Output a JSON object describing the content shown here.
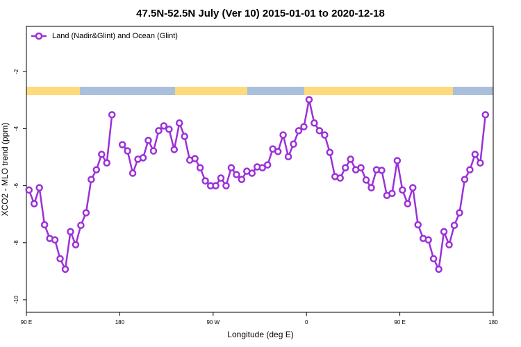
{
  "chart_data": {
    "type": "line",
    "title": "47.5N-52.5N July (Ver 10)   2015-01-01 to 2020-12-18",
    "x_label": "Longitude (deg E)",
    "y_label": "XCO2 - MLO trend (ppm)",
    "legend": "top-left",
    "xlim": [
      -270,
      180
    ],
    "ylim": [
      -10.44,
      -0.41
    ],
    "xticks": [
      {
        "value": -270,
        "label": "90 E"
      },
      {
        "value": -180,
        "label": "180"
      },
      {
        "value": -90,
        "label": "90 W"
      },
      0,
      {
        "value": 90,
        "label": "90 E"
      },
      {
        "value": 180,
        "label": "180"
      }
    ],
    "yticks": [
      -10,
      -8,
      -6,
      -4,
      -2
    ],
    "x": [
      -267.5,
      -262.5,
      -257.5,
      -252.5,
      -247.5,
      -242.5,
      -237.5,
      -232.5,
      -227.5,
      -222.5,
      -217.5,
      -212.5,
      -207.5,
      -202.5,
      -197.5,
      -192.5,
      -187.5,
      -182.5,
      -177.5,
      -172.5,
      -167.5,
      -162.5,
      -157.5,
      -152.5,
      -147.5,
      -142.5,
      -137.5,
      -132.5,
      -127.5,
      -122.5,
      -117.5,
      -112.5,
      -107.5,
      -102.5,
      -97.5,
      -92.5,
      -87.5,
      -82.5,
      -77.5,
      -72.5,
      -67.5,
      -62.5,
      -57.5,
      -52.5,
      -47.5,
      -42.5,
      -37.5,
      -32.5,
      -27.5,
      -22.5,
      -17.5,
      -12.5,
      -7.5,
      -2.5,
      2.5,
      7.5,
      12.5,
      17.5,
      22.5,
      27.5,
      32.5,
      37.5,
      42.5,
      47.5,
      52.5,
      57.5,
      62.5,
      67.5,
      72.5,
      77.5,
      82.5,
      87.5,
      92.5,
      97.5,
      102.5,
      107.5,
      112.5,
      117.5,
      122.5,
      127.5,
      132.5,
      137.5,
      142.5,
      147.5,
      152.5,
      157.5,
      162.5,
      167.5,
      172.5
    ],
    "series": [
      {
        "name": "Land (Nadir&Glint) and Ocean (Glint)",
        "color": "#9b30d9",
        "values": [
          -6.15,
          -6.63,
          -6.07,
          -7.37,
          -7.85,
          -7.9,
          -8.56,
          -8.93,
          -7.61,
          -8.07,
          -7.39,
          -6.95,
          -5.78,
          -5.44,
          -4.9,
          -5.2,
          -3.51,
          null,
          -4.56,
          -4.78,
          -5.56,
          -5.07,
          -5.02,
          -4.41,
          -4.78,
          -4.07,
          -3.9,
          -4.02,
          -4.73,
          -3.8,
          -4.27,
          -5.1,
          -5.05,
          -5.37,
          -5.83,
          -6.0,
          -6.0,
          -5.73,
          -6.0,
          -5.37,
          -5.61,
          -5.78,
          -5.49,
          -5.56,
          -5.34,
          -5.37,
          -5.27,
          -4.71,
          -4.8,
          -4.22,
          -4.98,
          -4.54,
          -4.07,
          -3.93,
          -2.98,
          -3.8,
          -4.07,
          -4.22,
          -4.83,
          -5.68,
          -5.73,
          -5.37,
          -5.07,
          -5.44,
          -5.37,
          -5.8,
          -6.07,
          -5.44,
          -5.46,
          -6.34,
          -6.27,
          -5.12,
          -6.15,
          -6.63,
          -6.07,
          -7.37,
          -7.85,
          -7.9,
          -8.56,
          -8.93,
          -7.61,
          -8.07,
          -7.39,
          -6.95,
          -5.78,
          -5.44,
          -4.9,
          -5.2,
          -3.51
        ]
      }
    ]
  }
}
